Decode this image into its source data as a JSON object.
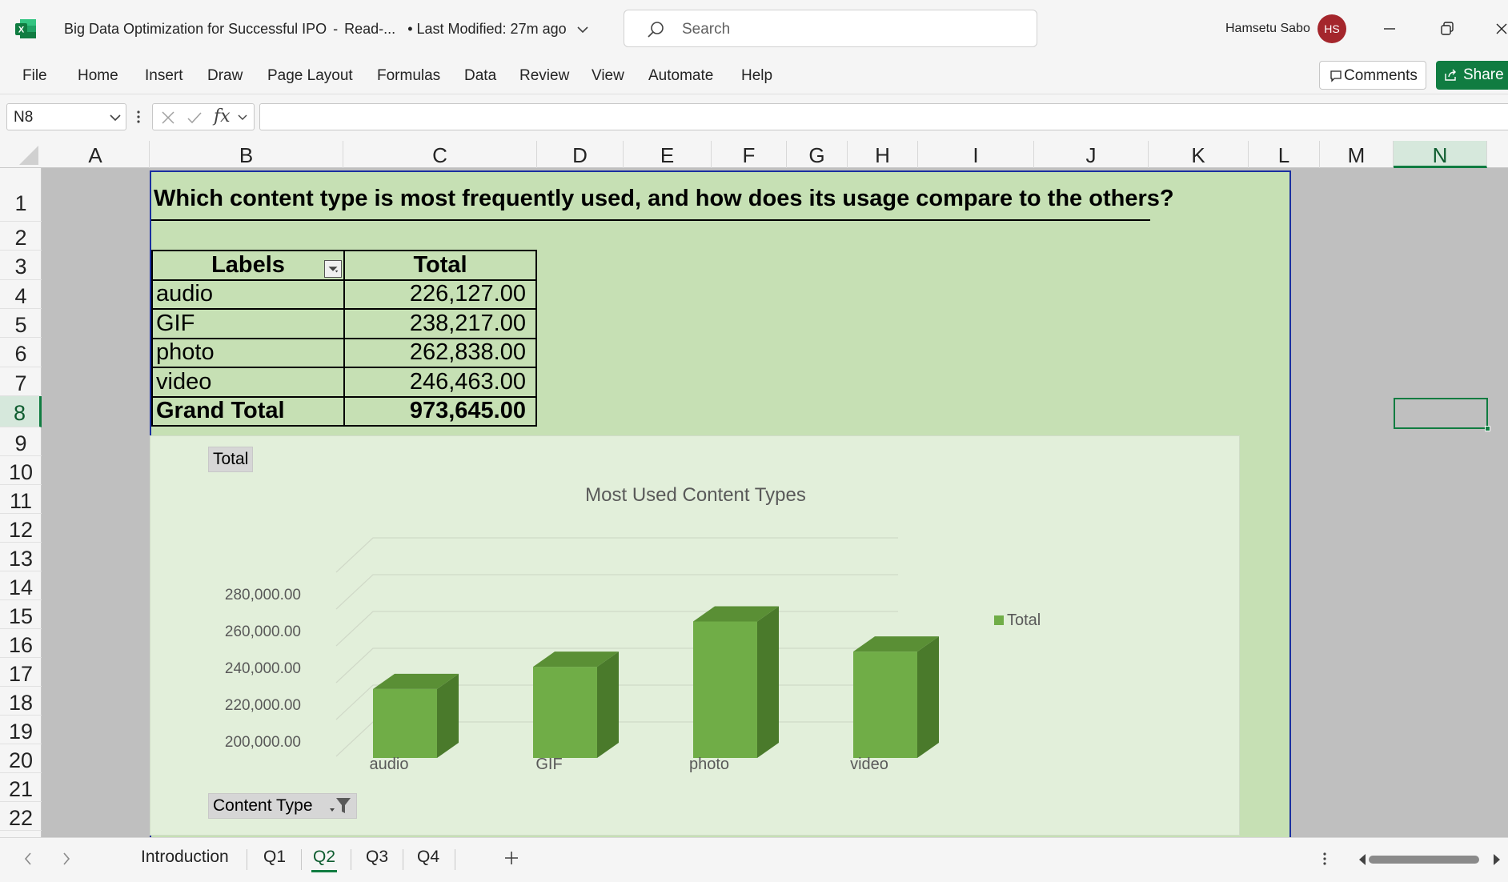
{
  "app": {
    "title": "Big Data Optimization for Successful IPO",
    "mode": "Read-...",
    "modified": "• Last Modified: 27m ago",
    "search_placeholder": "Search",
    "user_name": "Hamsetu Sabo",
    "user_initials": "HS"
  },
  "ribbon": {
    "menu": [
      "File",
      "Home",
      "Insert",
      "Draw",
      "Page Layout",
      "Formulas",
      "Data",
      "Review",
      "View",
      "Automate",
      "Help"
    ],
    "comments_label": "Comments",
    "share_label": "Share"
  },
  "formula_bar": {
    "name_box": "N8",
    "fx_label": "fx",
    "formula": ""
  },
  "columns": [
    "A",
    "B",
    "C",
    "D",
    "E",
    "F",
    "G",
    "H",
    "I",
    "J",
    "K",
    "L",
    "M",
    "N"
  ],
  "selected_column": "N",
  "rows": [
    "1",
    "2",
    "3",
    "4",
    "5",
    "6",
    "7",
    "8",
    "9",
    "10",
    "11",
    "12",
    "13",
    "14",
    "15",
    "16",
    "17",
    "18",
    "19",
    "20",
    "21",
    "22"
  ],
  "selected_row": "8",
  "sheet": {
    "question": "Which content type is most frequently used, and how does its usage compare to the others?",
    "pivot": {
      "header_labels": "Labels",
      "header_total": "Total",
      "rows": [
        {
          "label": "audio",
          "value": "226,127.00"
        },
        {
          "label": "GIF",
          "value": "238,217.00"
        },
        {
          "label": "photo",
          "value": "262,838.00"
        },
        {
          "label": "video",
          "value": "246,463.00"
        }
      ],
      "grand_total_label": "Grand Total",
      "grand_total_value": "973,645.00"
    }
  },
  "chart": {
    "values_button": "Total",
    "axis_button": "Content Type",
    "colors": {
      "front": "#70ad47",
      "side": "#4a7a2b",
      "top": "#5a8f35",
      "grid": "#d0d9c8"
    }
  },
  "chart_data": {
    "type": "bar",
    "title": "Most Used Content Types",
    "categories": [
      "audio",
      "GIF",
      "photo",
      "video"
    ],
    "series": [
      {
        "name": "Total",
        "values": [
          226127,
          238217,
          262838,
          246463
        ]
      }
    ],
    "ylim": [
      200000,
      280000
    ],
    "yticks": [
      "200,000.00",
      "220,000.00",
      "240,000.00",
      "260,000.00",
      "280,000.00"
    ],
    "grid": true,
    "legend": "right",
    "style": "3d-column"
  },
  "sheet_tabs": {
    "tabs": [
      "Introduction",
      "Q1",
      "Q2",
      "Q3",
      "Q4"
    ],
    "active": "Q2"
  }
}
